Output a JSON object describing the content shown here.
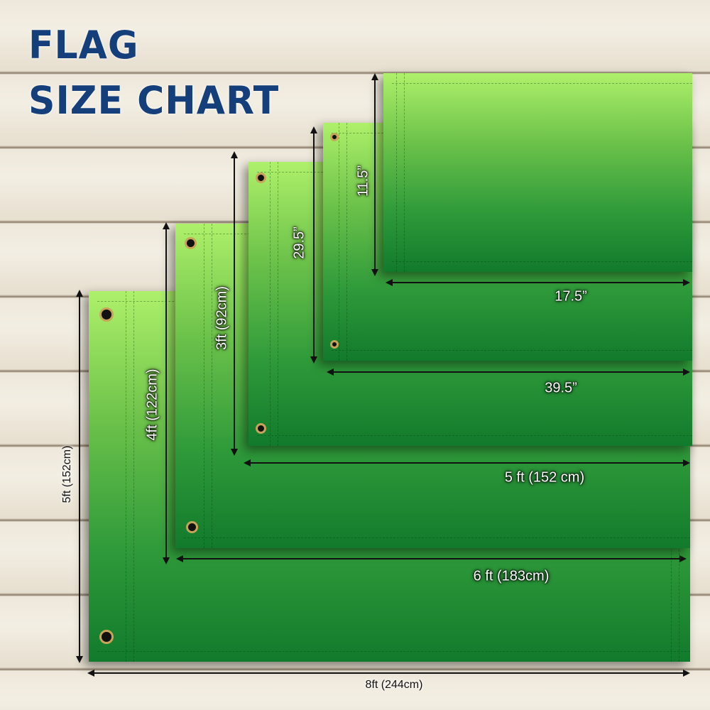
{
  "title": {
    "line1": "FLAG",
    "line2": "SIZE CHART"
  },
  "colors": {
    "title": "#143f7a",
    "flag_top": "#aef06a",
    "flag_bottom": "#127a2c",
    "grommet": "#c8a45a"
  },
  "sizes": [
    {
      "width_label": "8ft (244cm)",
      "height_label": "5ft (152cm)"
    },
    {
      "width_label": "6 ft (183cm)",
      "height_label": "4ft (122cm)"
    },
    {
      "width_label": "5 ft (152 cm)",
      "height_label": "3ft (92cm)"
    },
    {
      "width_label": "39.5”",
      "height_label": "29.5”"
    },
    {
      "width_label": "17.5”",
      "height_label": "11.5”"
    }
  ]
}
